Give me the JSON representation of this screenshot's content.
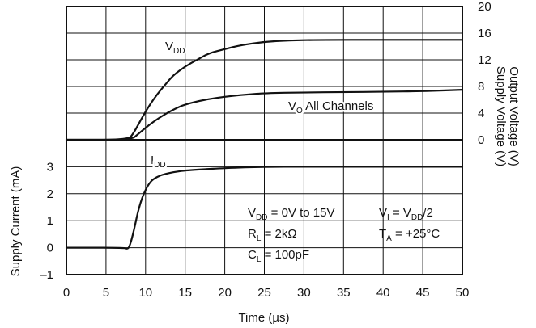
{
  "chart_data": [
    {
      "type": "line",
      "panel": "top",
      "x_ticks": [
        "0",
        "5",
        "10",
        "15",
        "20",
        "25",
        "30",
        "35",
        "40",
        "45",
        "50"
      ],
      "xlim": [
        0,
        50
      ],
      "ylim": [
        0,
        20
      ],
      "y_ticks_right": [
        "0",
        "4",
        "8",
        "12",
        "16",
        "20"
      ],
      "ylabel_right_1": "Output Voltage (V)",
      "ylabel_right_2": "Supply Voltage (V)",
      "grid": true,
      "series": [
        {
          "name": "VDD",
          "label_main": "V",
          "label_sub": "DD",
          "x": [
            0,
            7.8,
            8.5,
            9.5,
            10.5,
            11.5,
            12.5,
            13.5,
            15,
            16.5,
            18,
            20,
            22,
            25,
            28,
            32,
            40,
            50
          ],
          "y": [
            0,
            0,
            1.0,
            3.2,
            5.2,
            6.9,
            8.3,
            9.7,
            11.0,
            12.0,
            13.0,
            13.6,
            14.2,
            14.7,
            14.9,
            15.0,
            15.0,
            15.0
          ]
        },
        {
          "name": "VO All Channels",
          "label_main": "V",
          "label_sub": "O",
          "label_rest": " All Channels",
          "x": [
            0,
            8.2,
            9,
            10,
            11,
            12,
            13,
            14,
            15,
            17,
            19,
            21,
            23,
            25,
            30,
            35,
            40,
            45,
            50
          ],
          "y": [
            0,
            0,
            0.8,
            1.8,
            2.7,
            3.5,
            4.2,
            4.8,
            5.3,
            5.9,
            6.3,
            6.6,
            6.8,
            7.0,
            7.1,
            7.15,
            7.2,
            7.3,
            7.5
          ]
        }
      ]
    },
    {
      "type": "line",
      "panel": "bottom",
      "x_ticks": [
        "0",
        "5",
        "10",
        "15",
        "20",
        "25",
        "30",
        "35",
        "40",
        "45",
        "50"
      ],
      "xlim": [
        0,
        50
      ],
      "ylim": [
        -1,
        4
      ],
      "y_ticks_left": [
        "–1",
        "0",
        "1",
        "2",
        "3"
      ],
      "xlabel": "Time (µs)",
      "ylabel_left": "Supply Current (mA)",
      "grid": true,
      "series": [
        {
          "name": "IDD",
          "label_main": "I",
          "label_sub": "DD",
          "x": [
            0,
            7.3,
            7.7,
            8.0,
            8.5,
            9.0,
            9.5,
            10.0,
            10.5,
            11.0,
            12.0,
            13.0,
            14.0,
            15.0,
            17.0,
            20.0,
            25.0,
            30.0,
            40.0,
            50.0
          ],
          "y": [
            0,
            0,
            -0.05,
            0.05,
            0.6,
            1.3,
            1.8,
            2.15,
            2.4,
            2.55,
            2.7,
            2.77,
            2.82,
            2.86,
            2.9,
            2.95,
            3.0,
            3.0,
            3.0,
            3.0
          ]
        }
      ],
      "annotations": {
        "vdd_main": "V",
        "vdd_sub": "DD",
        "vdd_rest": " = 0V to 15V",
        "vi_main": "V",
        "vi_sub": "I",
        "vi_mid": " = V",
        "vi_sub2": "DD",
        "vi_rest": "/2",
        "rl_main": "R",
        "rl_sub": "L",
        "rl_rest": " = 2kΩ",
        "ta_main": "T",
        "ta_sub": "A",
        "ta_rest": " = +25°C",
        "cl_main": "C",
        "cl_sub": "L",
        "cl_rest": " = 100pF"
      }
    }
  ]
}
